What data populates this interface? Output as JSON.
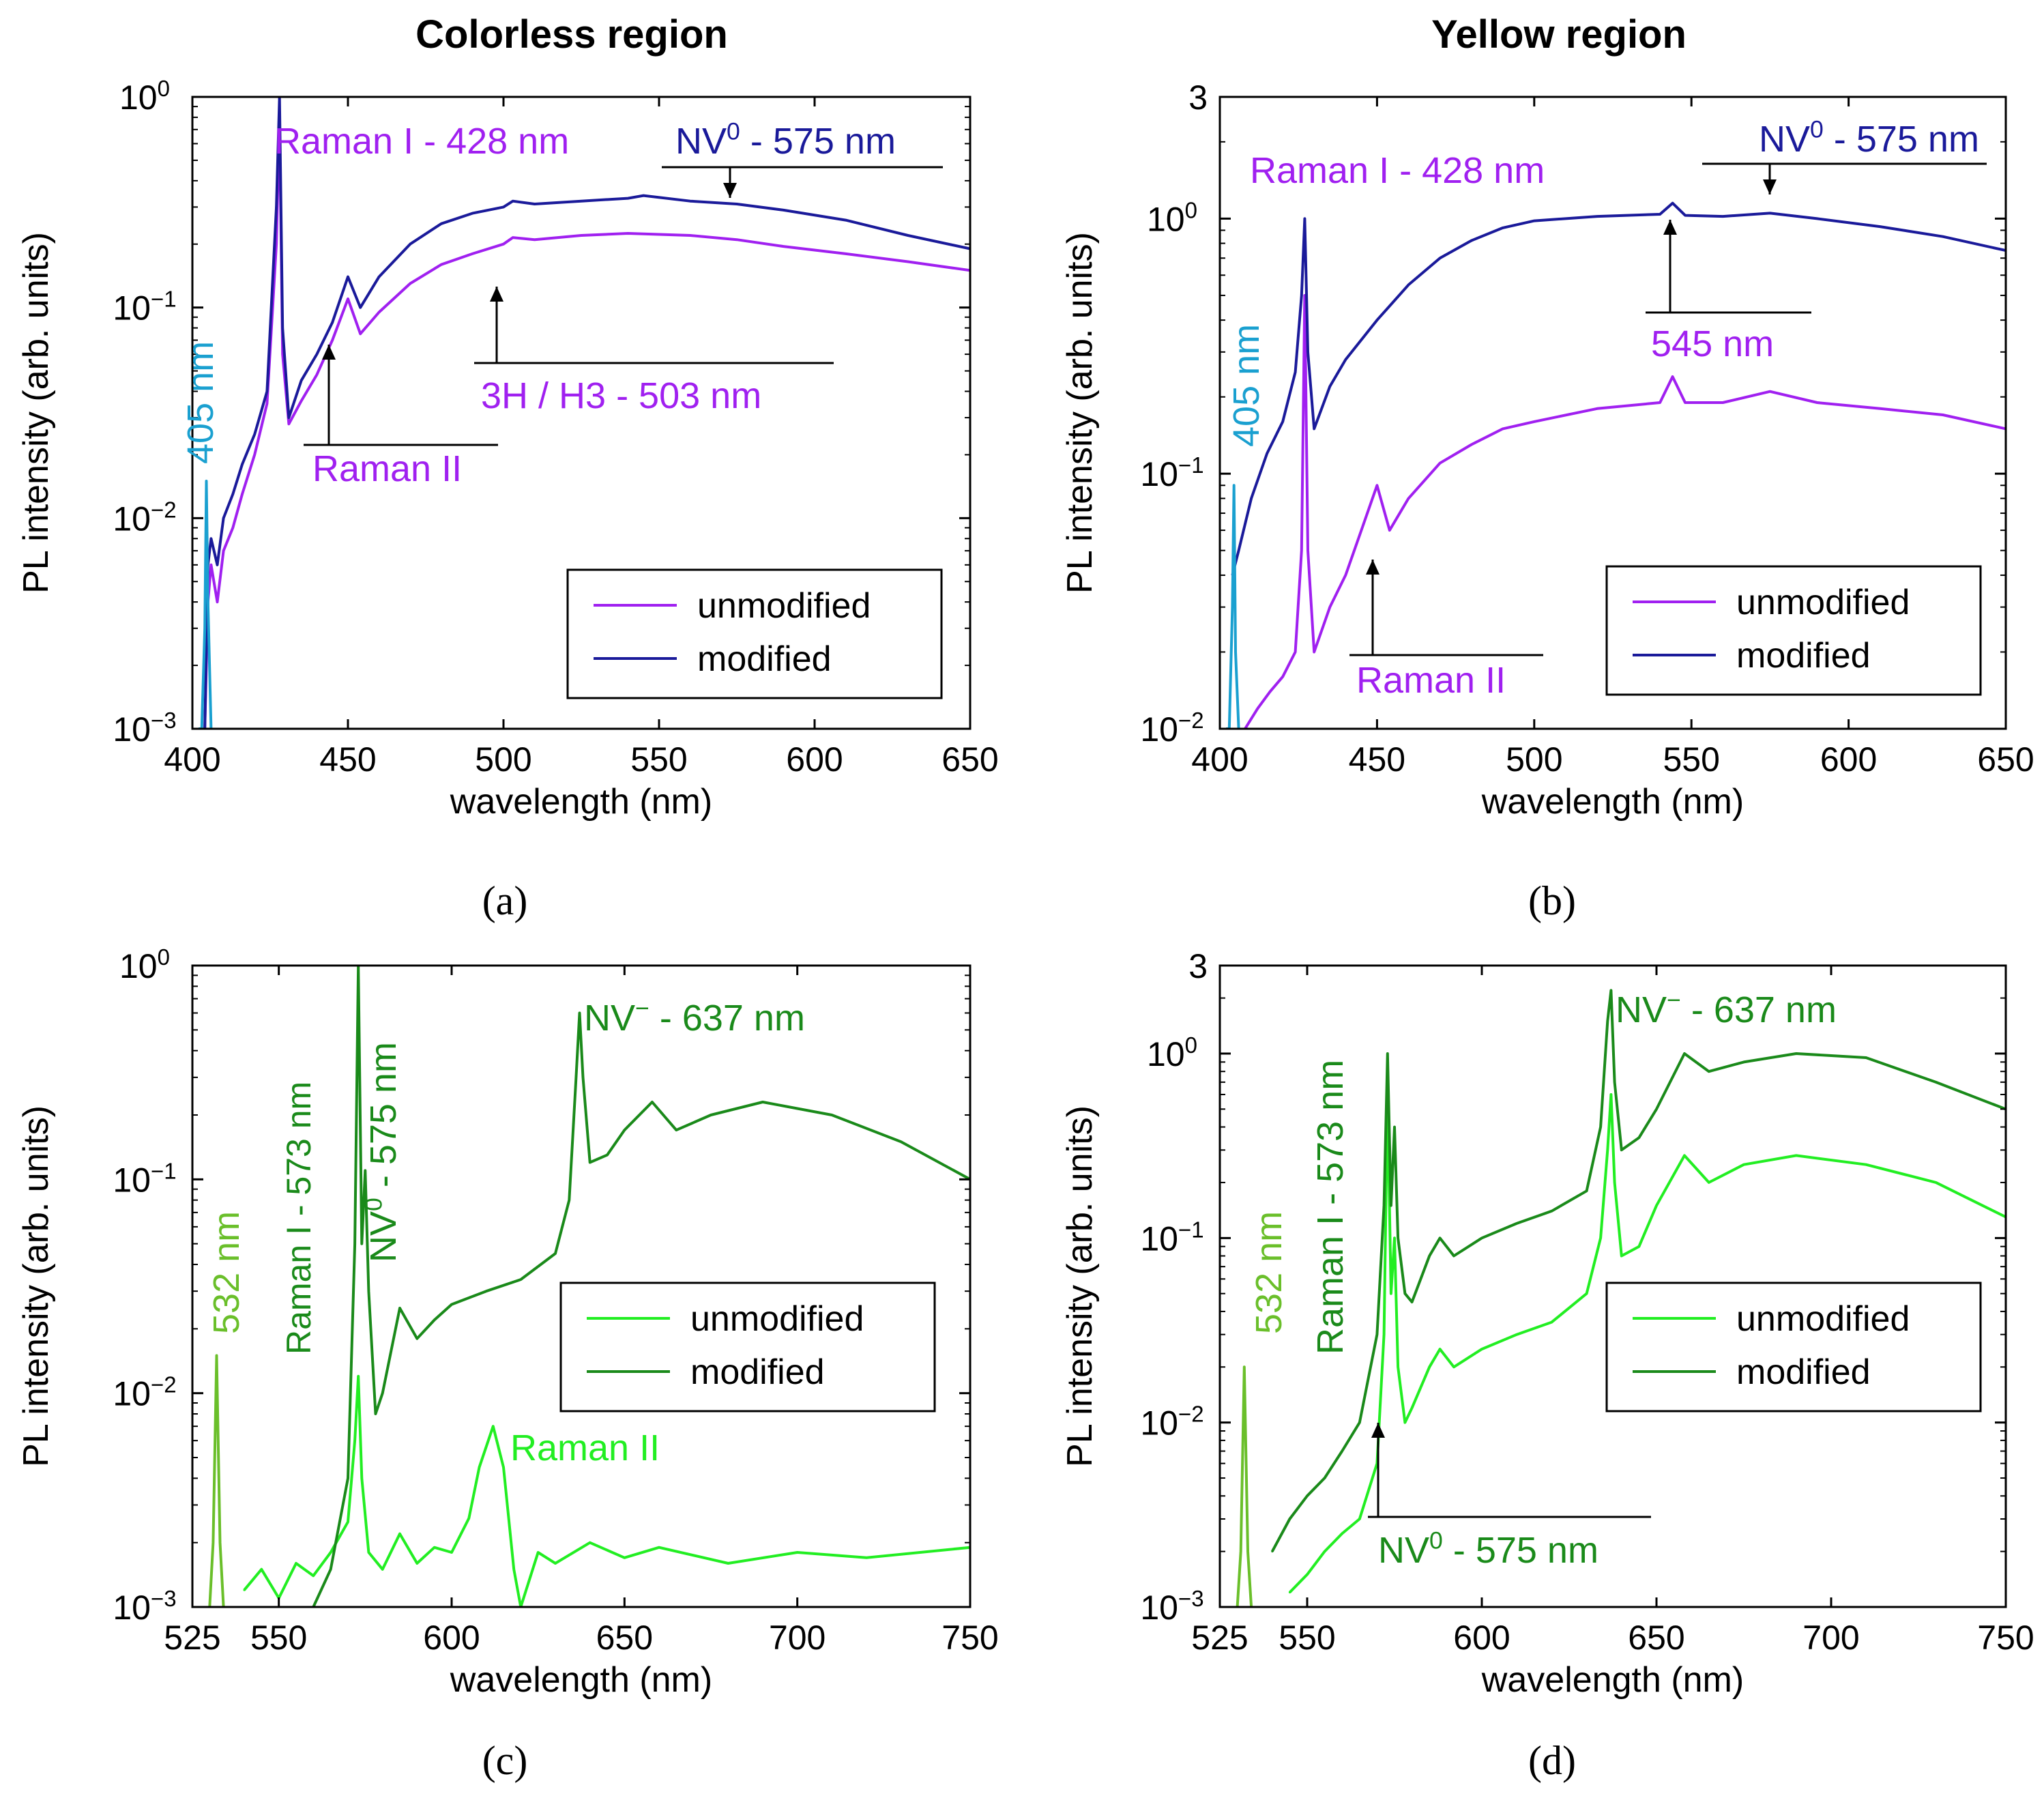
{
  "figure": {
    "title_left": "Colorless region",
    "title_right": "Yellow region",
    "legend_unmodified": "unmodified",
    "legend_modified": "modified",
    "colors": {
      "purple": "#a020f0",
      "navy": "#1a1a9a",
      "cyan": "#1aa0d0",
      "bright_green": "#22ee22",
      "dark_green": "#1a8a1a",
      "olive_green": "#6abf2a"
    }
  },
  "chart_data": [
    {
      "panel": "a",
      "type": "line",
      "caption": "(a)",
      "xlabel": "wavelength (nm)",
      "ylabel": "PL intensity (arb. units)",
      "xlim": [
        400,
        650
      ],
      "ylim": [
        0.001,
        1
      ],
      "yscale": "log",
      "xticks": [
        400,
        450,
        500,
        550,
        600,
        650
      ],
      "yticks": [
        {
          "value": 1,
          "base": "10",
          "exp": "0"
        },
        {
          "value": 0.1,
          "base": "10",
          "exp": "−1"
        },
        {
          "value": 0.01,
          "base": "10",
          "exp": "−2"
        },
        {
          "value": 0.001,
          "base": "10",
          "exp": "−3"
        }
      ],
      "legend": [
        "unmodified",
        "modified"
      ],
      "series": [
        {
          "name": "unmodified",
          "color": "#a020f0",
          "x": [
            404,
            405,
            406,
            408,
            410,
            413,
            416,
            420,
            424,
            427,
            428,
            429,
            431,
            435,
            440,
            445,
            450,
            454,
            460,
            470,
            480,
            490,
            500,
            503,
            510,
            525,
            540,
            560,
            575,
            590,
            610,
            630,
            650
          ],
          "y": [
            0.001,
            0.004,
            0.006,
            0.004,
            0.007,
            0.009,
            0.013,
            0.02,
            0.035,
            0.2,
            0.8,
            0.06,
            0.028,
            0.036,
            0.048,
            0.07,
            0.11,
            0.075,
            0.095,
            0.13,
            0.16,
            0.18,
            0.2,
            0.215,
            0.21,
            0.22,
            0.225,
            0.22,
            0.21,
            0.195,
            0.18,
            0.165,
            0.15
          ]
        },
        {
          "name": "modified",
          "color": "#1a1a9a",
          "x": [
            404,
            405,
            406,
            408,
            410,
            413,
            416,
            420,
            424,
            427,
            428,
            429,
            431,
            435,
            440,
            445,
            450,
            454,
            460,
            470,
            480,
            490,
            500,
            503,
            510,
            525,
            540,
            545,
            560,
            575,
            590,
            610,
            630,
            650
          ],
          "y": [
            0.001,
            0.006,
            0.008,
            0.006,
            0.01,
            0.013,
            0.018,
            0.025,
            0.04,
            0.3,
            1.0,
            0.08,
            0.03,
            0.045,
            0.06,
            0.085,
            0.14,
            0.1,
            0.14,
            0.2,
            0.25,
            0.28,
            0.3,
            0.32,
            0.31,
            0.32,
            0.33,
            0.34,
            0.32,
            0.31,
            0.29,
            0.26,
            0.22,
            0.19
          ]
        },
        {
          "name": "405 nm",
          "color": "#1aa0d0",
          "x": [
            402,
            403,
            404,
            404.5,
            405,
            406
          ],
          "y": [
            0.001,
            0.001,
            0.003,
            0.015,
            0.004,
            0.001
          ]
        }
      ],
      "annotations": [
        {
          "text": "Raman I - 428 nm",
          "color": "#a020f0"
        },
        {
          "text": "NV",
          "sup": "0",
          "tail": " - 575 nm",
          "color": "#1a1a9a"
        },
        {
          "text": "3H / H3 - 503 nm",
          "color": "#a020f0"
        },
        {
          "text": "Raman II",
          "color": "#a020f0"
        },
        {
          "text": "405 nm",
          "color": "#1aa0d0"
        }
      ]
    },
    {
      "panel": "b",
      "type": "line",
      "caption": "(b)",
      "xlabel": "wavelength (nm)",
      "ylabel": "PL intensity (arb. units)",
      "xlim": [
        400,
        650
      ],
      "ylim": [
        0.01,
        3
      ],
      "yscale": "log",
      "xticks": [
        400,
        450,
        500,
        550,
        600,
        650
      ],
      "yticks": [
        {
          "value": 3,
          "label": "3"
        },
        {
          "value": 1,
          "base": "10",
          "exp": "0"
        },
        {
          "value": 0.1,
          "base": "10",
          "exp": "−1"
        },
        {
          "value": 0.01,
          "base": "10",
          "exp": "−2"
        }
      ],
      "legend": [
        "unmodified",
        "modified"
      ],
      "series": [
        {
          "name": "unmodified",
          "color": "#a020f0",
          "x": [
            408,
            412,
            416,
            420,
            424,
            426,
            427,
            428,
            430,
            435,
            440,
            445,
            450,
            454,
            460,
            470,
            480,
            490,
            500,
            520,
            540,
            544,
            548,
            560,
            575,
            590,
            610,
            630,
            650
          ],
          "y": [
            0.01,
            0.012,
            0.014,
            0.016,
            0.02,
            0.05,
            0.5,
            0.05,
            0.02,
            0.03,
            0.04,
            0.06,
            0.09,
            0.06,
            0.08,
            0.11,
            0.13,
            0.15,
            0.16,
            0.18,
            0.19,
            0.24,
            0.19,
            0.19,
            0.21,
            0.19,
            0.18,
            0.17,
            0.15
          ]
        },
        {
          "name": "modified",
          "color": "#1a1a9a",
          "x": [
            404,
            406,
            410,
            415,
            420,
            424,
            426,
            427,
            428,
            430,
            435,
            440,
            450,
            460,
            470,
            480,
            490,
            500,
            520,
            540,
            544,
            548,
            560,
            575,
            590,
            610,
            630,
            650
          ],
          "y": [
            0.04,
            0.05,
            0.08,
            0.12,
            0.16,
            0.25,
            0.5,
            1.0,
            0.3,
            0.15,
            0.22,
            0.28,
            0.4,
            0.55,
            0.7,
            0.82,
            0.92,
            0.98,
            1.02,
            1.04,
            1.15,
            1.03,
            1.02,
            1.05,
            1.0,
            0.93,
            0.85,
            0.75
          ]
        },
        {
          "name": "405 nm",
          "color": "#1aa0d0",
          "x": [
            402,
            403,
            404,
            404.5,
            405,
            406
          ],
          "y": [
            0.01,
            0.01,
            0.03,
            0.09,
            0.02,
            0.01
          ]
        }
      ],
      "annotations": [
        {
          "text": "Raman I - 428 nm",
          "color": "#a020f0"
        },
        {
          "text": "NV",
          "sup": "0",
          "tail": " - 575 nm",
          "color": "#1a1a9a"
        },
        {
          "text": "545 nm",
          "color": "#a020f0"
        },
        {
          "text": "Raman II",
          "color": "#a020f0"
        },
        {
          "text": "405 nm",
          "color": "#1aa0d0"
        }
      ]
    },
    {
      "panel": "c",
      "type": "line",
      "caption": "(c)",
      "xlabel": "wavelength (nm)",
      "ylabel": "PL intensity (arb. units)",
      "xlim": [
        525,
        750
      ],
      "ylim": [
        0.001,
        1
      ],
      "yscale": "log",
      "xticks": [
        525,
        550,
        600,
        650,
        700,
        750
      ],
      "yticks": [
        {
          "value": 1,
          "base": "10",
          "exp": "0"
        },
        {
          "value": 0.1,
          "base": "10",
          "exp": "−1"
        },
        {
          "value": 0.01,
          "base": "10",
          "exp": "−2"
        },
        {
          "value": 0.001,
          "base": "10",
          "exp": "−3"
        }
      ],
      "legend": [
        "unmodified",
        "modified"
      ],
      "series": [
        {
          "name": "unmodified",
          "color": "#22ee22",
          "x": [
            540,
            545,
            550,
            555,
            560,
            565,
            570,
            572,
            573,
            574,
            576,
            580,
            585,
            590,
            595,
            600,
            605,
            608,
            612,
            615,
            618,
            620,
            625,
            630,
            640,
            650,
            660,
            680,
            700,
            720,
            750
          ],
          "y": [
            0.0012,
            0.0015,
            0.0011,
            0.0016,
            0.0014,
            0.0018,
            0.0025,
            0.006,
            0.012,
            0.004,
            0.0018,
            0.0015,
            0.0022,
            0.0016,
            0.0019,
            0.0018,
            0.0026,
            0.0045,
            0.007,
            0.0045,
            0.0015,
            0.001,
            0.0018,
            0.0016,
            0.002,
            0.0017,
            0.0019,
            0.0016,
            0.0018,
            0.0017,
            0.0019
          ]
        },
        {
          "name": "modified",
          "color": "#1a8a1a",
          "x": [
            560,
            565,
            570,
            572,
            573,
            574,
            575,
            576,
            578,
            580,
            585,
            590,
            595,
            600,
            610,
            620,
            630,
            634,
            636,
            637,
            638,
            640,
            645,
            650,
            658,
            665,
            675,
            690,
            710,
            730,
            750
          ],
          "y": [
            0.001,
            0.0015,
            0.004,
            0.05,
            1.0,
            0.05,
            0.11,
            0.03,
            0.008,
            0.01,
            0.025,
            0.018,
            0.022,
            0.026,
            0.03,
            0.034,
            0.045,
            0.08,
            0.3,
            0.6,
            0.3,
            0.12,
            0.13,
            0.17,
            0.23,
            0.17,
            0.2,
            0.23,
            0.2,
            0.15,
            0.1
          ]
        },
        {
          "name": "532 nm",
          "color": "#6abf2a",
          "x": [
            530,
            531,
            532,
            533,
            534
          ],
          "y": [
            0.001,
            0.002,
            0.015,
            0.002,
            0.001
          ]
        }
      ],
      "annotations": [
        {
          "text": "Raman I - 573 nm",
          "color": "#1a8a1a"
        },
        {
          "text": "NV",
          "sup": "0",
          "tail": " - 575 nm",
          "color": "#1a8a1a"
        },
        {
          "text": "NV",
          "sup": "−",
          "tail": " - 637 nm",
          "color": "#1a8a1a"
        },
        {
          "text": "Raman II",
          "color": "#22ee22"
        },
        {
          "text": "532 nm",
          "color": "#6abf2a"
        }
      ]
    },
    {
      "panel": "d",
      "type": "line",
      "caption": "(d)",
      "xlabel": "wavelength (nm)",
      "ylabel": "PL intensity (arb. units)",
      "xlim": [
        525,
        750
      ],
      "ylim": [
        0.001,
        3
      ],
      "yscale": "log",
      "xticks": [
        525,
        550,
        600,
        650,
        700,
        750
      ],
      "yticks": [
        {
          "value": 3,
          "label": "3"
        },
        {
          "value": 1,
          "base": "10",
          "exp": "0"
        },
        {
          "value": 0.1,
          "base": "10",
          "exp": "−1"
        },
        {
          "value": 0.01,
          "base": "10",
          "exp": "−2"
        },
        {
          "value": 0.001,
          "base": "10",
          "exp": "−3"
        }
      ],
      "legend": [
        "unmodified",
        "modified"
      ],
      "series": [
        {
          "name": "unmodified",
          "color": "#22ee22",
          "x": [
            545,
            550,
            555,
            560,
            565,
            570,
            572,
            573,
            574,
            575,
            576,
            578,
            580,
            585,
            588,
            592,
            600,
            610,
            620,
            630,
            634,
            636,
            637,
            638,
            640,
            645,
            650,
            658,
            665,
            675,
            690,
            710,
            730,
            750
          ],
          "y": [
            0.0012,
            0.0015,
            0.002,
            0.0025,
            0.003,
            0.006,
            0.03,
            0.6,
            0.05,
            0.1,
            0.02,
            0.01,
            0.012,
            0.02,
            0.025,
            0.02,
            0.025,
            0.03,
            0.035,
            0.05,
            0.1,
            0.3,
            0.6,
            0.2,
            0.08,
            0.09,
            0.15,
            0.28,
            0.2,
            0.25,
            0.28,
            0.25,
            0.2,
            0.13
          ]
        },
        {
          "name": "modified",
          "color": "#1a8a1a",
          "x": [
            540,
            545,
            550,
            555,
            560,
            565,
            570,
            572,
            573,
            574,
            575,
            576,
            578,
            580,
            585,
            588,
            592,
            600,
            610,
            620,
            630,
            634,
            636,
            637,
            638,
            640,
            645,
            650,
            658,
            665,
            675,
            690,
            710,
            730,
            750
          ],
          "y": [
            0.002,
            0.003,
            0.004,
            0.005,
            0.007,
            0.01,
            0.03,
            0.15,
            1.0,
            0.15,
            0.4,
            0.1,
            0.05,
            0.045,
            0.08,
            0.1,
            0.08,
            0.1,
            0.12,
            0.14,
            0.18,
            0.4,
            1.5,
            2.2,
            0.7,
            0.3,
            0.35,
            0.5,
            1.0,
            0.8,
            0.9,
            1.0,
            0.95,
            0.7,
            0.5
          ]
        },
        {
          "name": "532 nm",
          "color": "#6abf2a",
          "x": [
            530,
            531,
            532,
            533,
            534
          ],
          "y": [
            0.001,
            0.002,
            0.02,
            0.002,
            0.001
          ]
        }
      ],
      "annotations": [
        {
          "text": "Raman I - 573 nm",
          "color": "#1a8a1a"
        },
        {
          "text": "NV",
          "sup": "−",
          "tail": " - 637 nm",
          "color": "#1a8a1a"
        },
        {
          "text": "NV",
          "sup": "0",
          "tail": " - 575 nm",
          "color": "#1a8a1a"
        },
        {
          "text": "532 nm",
          "color": "#6abf2a"
        }
      ]
    }
  ]
}
